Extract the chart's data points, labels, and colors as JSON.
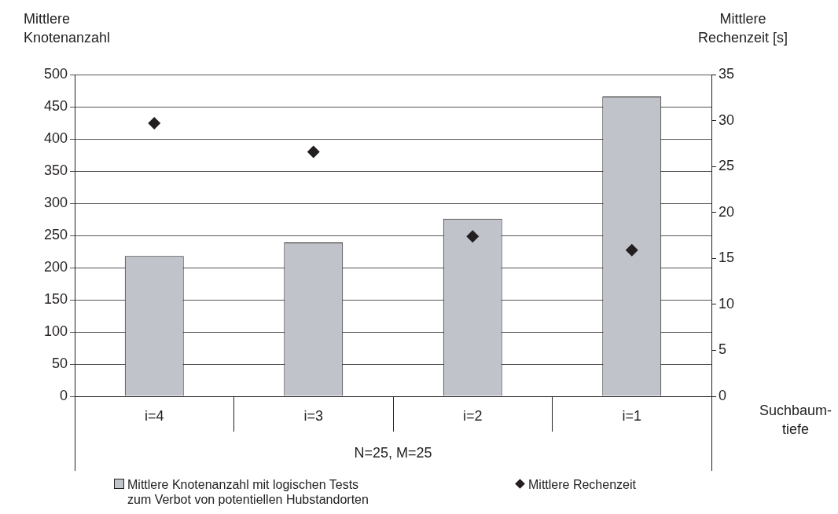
{
  "chart_data": {
    "type": "bar",
    "xlabel": "Suchbaum-tiefe",
    "ylabel": "Mittlere Knotenanzahl",
    "y2label": "Mittlere Rechenzeit [s]",
    "categories": [
      "i=4",
      "i=3",
      "i=2",
      "i=1"
    ],
    "series": [
      {
        "name": "Mittlere Knotenanzahl mit logischen Tests zum Verbot von potentiellen Hubstandorten",
        "type": "bar",
        "color": "#c0c3ca",
        "values": [
          218,
          239,
          276,
          466
        ]
      },
      {
        "name": "Mittlere Rechenzeit",
        "type": "scatter",
        "axis": "y2",
        "color": "#231f20",
        "marker": "diamond",
        "x": [
          "i=4",
          "i=3",
          "i=2",
          "i=1"
        ],
        "values": [
          29.7,
          26.6,
          17.4,
          15.9
        ]
      }
    ],
    "ylim": [
      0,
      500
    ],
    "yticks": [
      0,
      50,
      100,
      150,
      200,
      250,
      300,
      350,
      400,
      450,
      500
    ],
    "y2lim": [
      0,
      35
    ],
    "y2ticks": [
      0,
      5,
      10,
      15,
      20,
      25,
      30,
      35
    ],
    "annotations": [
      "N=25, M=25"
    ],
    "grid": "y",
    "legend": "bottom"
  }
}
